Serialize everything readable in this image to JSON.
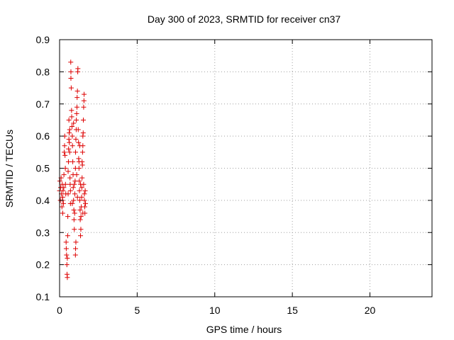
{
  "chart_data": {
    "type": "scatter",
    "title": "Day 300 of 2023, SRMTID for receiver cn37",
    "xlabel": "GPS time / hours",
    "ylabel": "SRMTID / TECUs",
    "xlim": [
      0,
      24
    ],
    "ylim": [
      0.1,
      0.9
    ],
    "xticks": [
      0,
      5,
      10,
      15,
      20
    ],
    "xtick_labels": [
      "0",
      "5",
      "10",
      "15",
      "20"
    ],
    "yticks": [
      0.1,
      0.2,
      0.3,
      0.4,
      0.5,
      0.6,
      0.7,
      0.8,
      0.9
    ],
    "ytick_labels": [
      "0.1",
      "0.2",
      "0.3",
      "0.4",
      "0.5",
      "0.6",
      "0.7",
      "0.8",
      "0.9"
    ],
    "grid": true,
    "marker": "+",
    "color": "#dd0000",
    "series": [
      {
        "name": "SRMTID",
        "points": [
          [
            0.0,
            0.43
          ],
          [
            0.02,
            0.46
          ],
          [
            0.05,
            0.4
          ],
          [
            0.07,
            0.44
          ],
          [
            0.1,
            0.47
          ],
          [
            0.12,
            0.42
          ],
          [
            0.15,
            0.38
          ],
          [
            0.17,
            0.45
          ],
          [
            0.2,
            0.41
          ],
          [
            0.22,
            0.43
          ],
          [
            0.25,
            0.39
          ],
          [
            0.27,
            0.44
          ],
          [
            0.3,
            0.55
          ],
          [
            0.32,
            0.57
          ],
          [
            0.33,
            0.6
          ],
          [
            0.35,
            0.54
          ],
          [
            0.37,
            0.5
          ],
          [
            0.38,
            0.45
          ],
          [
            0.4,
            0.42
          ],
          [
            0.42,
            0.27
          ],
          [
            0.43,
            0.25
          ],
          [
            0.45,
            0.23
          ],
          [
            0.47,
            0.2
          ],
          [
            0.48,
            0.17
          ],
          [
            0.5,
            0.16
          ],
          [
            0.5,
            0.22
          ],
          [
            0.52,
            0.29
          ],
          [
            0.53,
            0.35
          ],
          [
            0.55,
            0.49
          ],
          [
            0.57,
            0.52
          ],
          [
            0.58,
            0.56
          ],
          [
            0.6,
            0.59
          ],
          [
            0.62,
            0.61
          ],
          [
            0.63,
            0.58
          ],
          [
            0.65,
            0.55
          ],
          [
            0.67,
            0.47
          ],
          [
            0.68,
            0.45
          ],
          [
            0.7,
            0.43
          ],
          [
            0.7,
            0.39
          ],
          [
            0.72,
            0.83
          ],
          [
            0.73,
            0.8
          ],
          [
            0.73,
            0.78
          ],
          [
            0.75,
            0.75
          ],
          [
            0.77,
            0.68
          ],
          [
            0.78,
            0.66
          ],
          [
            0.8,
            0.63
          ],
          [
            0.82,
            0.6
          ],
          [
            0.83,
            0.57
          ],
          [
            0.85,
            0.52
          ],
          [
            0.87,
            0.48
          ],
          [
            0.88,
            0.44
          ],
          [
            0.9,
            0.4
          ],
          [
            0.92,
            0.37
          ],
          [
            0.93,
            0.34
          ],
          [
            0.95,
            0.31
          ],
          [
            0.97,
            0.36
          ],
          [
            0.98,
            0.42
          ],
          [
            1.0,
            0.46
          ],
          [
            1.02,
            0.5
          ],
          [
            1.03,
            0.55
          ],
          [
            1.05,
            0.59
          ],
          [
            1.07,
            0.62
          ],
          [
            1.08,
            0.65
          ],
          [
            1.1,
            0.67
          ],
          [
            1.12,
            0.69
          ],
          [
            1.13,
            0.72
          ],
          [
            1.15,
            0.74
          ],
          [
            1.17,
            0.8
          ],
          [
            1.18,
            0.81
          ],
          [
            1.2,
            0.62
          ],
          [
            1.22,
            0.58
          ],
          [
            1.23,
            0.53
          ],
          [
            1.25,
            0.5
          ],
          [
            1.27,
            0.46
          ],
          [
            1.28,
            0.43
          ],
          [
            1.3,
            0.4
          ],
          [
            1.32,
            0.37
          ],
          [
            1.33,
            0.34
          ],
          [
            1.35,
            0.29
          ],
          [
            1.37,
            0.31
          ],
          [
            1.38,
            0.35
          ],
          [
            1.4,
            0.38
          ],
          [
            1.42,
            0.41
          ],
          [
            1.43,
            0.44
          ],
          [
            1.45,
            0.47
          ],
          [
            1.47,
            0.51
          ],
          [
            1.48,
            0.55
          ],
          [
            1.5,
            0.57
          ],
          [
            1.5,
            0.6
          ],
          [
            1.52,
            0.61
          ],
          [
            1.53,
            0.65
          ],
          [
            1.55,
            0.69
          ],
          [
            1.57,
            0.71
          ],
          [
            1.58,
            0.73
          ],
          [
            1.6,
            0.42
          ],
          [
            1.6,
            0.4
          ],
          [
            1.62,
            0.38
          ],
          [
            1.63,
            0.36
          ],
          [
            1.65,
            0.43
          ],
          [
            1.67,
            0.39
          ],
          [
            1.02,
            0.23
          ],
          [
            1.03,
            0.25
          ],
          [
            1.05,
            0.27
          ],
          [
            0.6,
            0.65
          ],
          [
            0.65,
            0.62
          ],
          [
            0.9,
            0.64
          ],
          [
            1.1,
            0.48
          ],
          [
            1.25,
            0.52
          ],
          [
            1.3,
            0.57
          ],
          [
            1.45,
            0.52
          ],
          [
            1.55,
            0.45
          ],
          [
            0.28,
            0.48
          ],
          [
            0.2,
            0.36
          ],
          [
            0.18,
            0.4
          ],
          [
            0.55,
            0.42
          ],
          [
            0.82,
            0.39
          ],
          [
            0.95,
            0.45
          ],
          [
            1.15,
            0.41
          ],
          [
            1.35,
            0.45
          ],
          [
            1.5,
            0.36
          ]
        ]
      }
    ]
  }
}
